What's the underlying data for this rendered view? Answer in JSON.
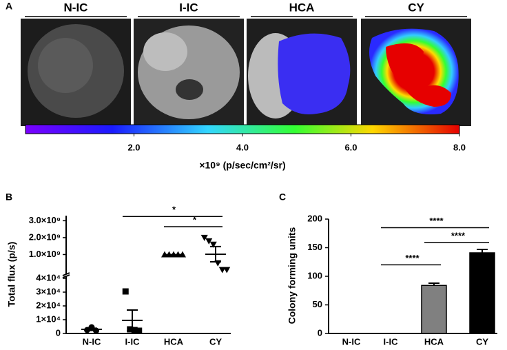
{
  "panel_a": {
    "label": "A",
    "images": [
      {
        "title": "N-IC"
      },
      {
        "title": "I-IC"
      },
      {
        "title": "HCA"
      },
      {
        "title": "CY"
      }
    ],
    "colorbar": {
      "lim": [
        0,
        8
      ],
      "ticks": [
        {
          "value": 2,
          "label": "2.0"
        },
        {
          "value": 4,
          "label": "4.0"
        },
        {
          "value": 6,
          "label": "6.0"
        },
        {
          "value": 8,
          "label": "8.0"
        }
      ],
      "label": "×10⁹ (p/sec/cm²/sr)"
    }
  },
  "chart_data": [
    {
      "type": "dot",
      "label": "B",
      "y_label": "Total flux (p/s)",
      "categories": [
        "N-IC",
        "I-IC",
        "HCA",
        "CY"
      ],
      "markers": [
        "circle",
        "square",
        "triangle-up",
        "triangle-down"
      ],
      "points": [
        [
          2500,
          4500,
          2000
        ],
        [
          30500,
          3000,
          2500,
          2000
        ],
        [
          1000000000,
          1000000000,
          1000000000,
          1000000000,
          1000000000
        ],
        [
          2000000000,
          1800000000,
          1600000000,
          500000000,
          100000000,
          100000000
        ]
      ],
      "means": [
        3000,
        9500,
        1000000000,
        1020000000
      ],
      "sems": [
        800,
        7500,
        0,
        450000000
      ],
      "y_segments": [
        {
          "ylim": [
            0,
            40000
          ],
          "yticks": [
            0,
            {
              "value": 10000,
              "label": "1×10⁴"
            },
            {
              "value": 20000,
              "label": "2×10⁴"
            },
            {
              "value": 30000,
              "label": "3×10⁴"
            },
            {
              "value": 40000,
              "label": "4×10⁴"
            }
          ]
        },
        {
          "ylim": [
            0,
            3300000000
          ],
          "yticks": [
            {
              "value": 1000000000,
              "label": "1.0×10⁹"
            },
            {
              "value": 2000000000,
              "label": "2.0×10⁹"
            },
            {
              "value": 3000000000,
              "label": "3.0×10⁹"
            }
          ]
        }
      ],
      "annotations": [
        {
          "text": "*",
          "from": 1,
          "to": 3,
          "y": 3250000000
        },
        {
          "text": "*",
          "from": 2,
          "to": 3,
          "y": 2650000000
        }
      ]
    },
    {
      "type": "bar",
      "label": "C",
      "y_label": "Colony forming units",
      "categories": [
        "N-IC",
        "I-IC",
        "HCA",
        "CY"
      ],
      "values": [
        0,
        0,
        84,
        141
      ],
      "errors": [
        0,
        0,
        4,
        6
      ],
      "colors": [
        "#808080",
        "#808080",
        "#808080",
        "#000000"
      ],
      "ylim": [
        0,
        200
      ],
      "yticks": [
        0,
        50,
        100,
        150,
        200
      ],
      "annotations": [
        {
          "text": "****",
          "from": 1,
          "to": 3,
          "y": 185
        },
        {
          "text": "****",
          "from": 2,
          "to": 3,
          "y": 159
        },
        {
          "text": "****",
          "from": 1,
          "to": 2,
          "y": 120
        }
      ]
    }
  ]
}
